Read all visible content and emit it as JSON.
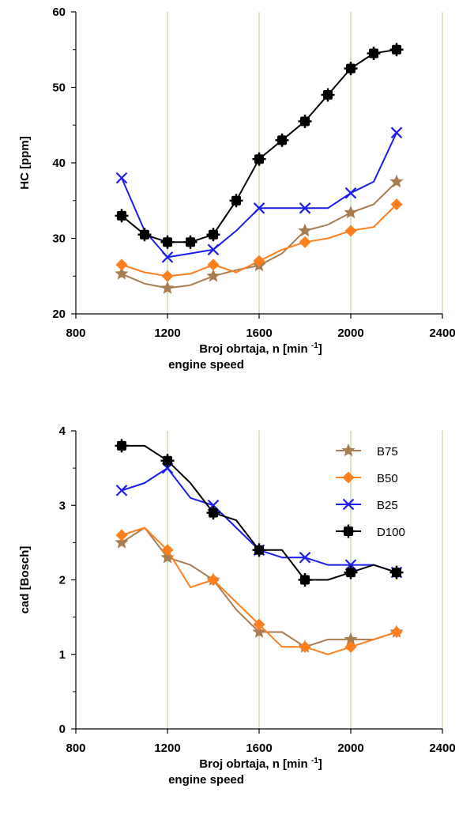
{
  "chart_data": [
    {
      "type": "line",
      "xlabel": "Broj obrtaja, n [min",
      "xlabel_sup": "-1",
      "xlabel_close": "]",
      "xlabel_line2": "engine speed",
      "ylabel": "HC [ppm]",
      "xlim": [
        800,
        2400
      ],
      "ylim": [
        20,
        60
      ],
      "xticks": [
        "800",
        "1200",
        "1600",
        "2000",
        "2400"
      ],
      "yticks": [
        "20",
        "30",
        "40",
        "50",
        "60"
      ],
      "grid": "vertical",
      "legend": false,
      "series": [
        {
          "name": "B75",
          "color": "#a97d4f",
          "marker": "star",
          "x": [
            1000,
            1100,
            1200,
            1300,
            1400,
            1500,
            1600,
            1700,
            1800,
            1900,
            2000,
            2100,
            2200
          ],
          "y": [
            25.3,
            24,
            23.4,
            23.8,
            25,
            25.8,
            26.4,
            28,
            31,
            31.8,
            33.4,
            34.5,
            37.5
          ],
          "marked": [
            1000,
            1200,
            1400,
            1600,
            1800,
            2000,
            2200
          ]
        },
        {
          "name": "B50",
          "color": "#ff7f1e",
          "marker": "diamond",
          "x": [
            1000,
            1100,
            1200,
            1300,
            1400,
            1500,
            1600,
            1700,
            1800,
            1900,
            2000,
            2100,
            2200
          ],
          "y": [
            26.5,
            25.5,
            25,
            25.3,
            26.5,
            25.5,
            27,
            28.5,
            29.5,
            30,
            31,
            31.5,
            34.5
          ],
          "marked": [
            1000,
            1200,
            1400,
            1600,
            1800,
            2000,
            2200
          ]
        },
        {
          "name": "B25",
          "color": "#1c1cf0",
          "marker": "x",
          "x": [
            1000,
            1100,
            1200,
            1300,
            1400,
            1500,
            1600,
            1700,
            1800,
            1900,
            2000,
            2100,
            2200
          ],
          "y": [
            38,
            31,
            27.5,
            28,
            28.5,
            31,
            34,
            34,
            34,
            34,
            36,
            37.5,
            44
          ],
          "marked": [
            1000,
            1200,
            1400,
            1600,
            1800,
            2000,
            2200
          ]
        },
        {
          "name": "D100",
          "color": "#000000",
          "marker": "square",
          "x": [
            1000,
            1100,
            1200,
            1300,
            1400,
            1500,
            1600,
            1700,
            1800,
            1900,
            2000,
            2100,
            2200
          ],
          "y": [
            33,
            30.5,
            29.5,
            29.5,
            30.5,
            35,
            40.5,
            43,
            45.5,
            49,
            52.5,
            54.5,
            55
          ],
          "marked": [
            1000,
            1100,
            1200,
            1300,
            1400,
            1500,
            1600,
            1700,
            1800,
            1900,
            2000,
            2100,
            2200
          ]
        }
      ]
    },
    {
      "type": "line",
      "xlabel": "Broj obrtaja, n [min",
      "xlabel_sup": "-1",
      "xlabel_close": "]",
      "xlabel_line2": "engine speed",
      "ylabel": "cad [Bosch]",
      "xlim": [
        800,
        2400
      ],
      "ylim": [
        0,
        4
      ],
      "xticks": [
        "800",
        "1200",
        "1600",
        "2000",
        "2400"
      ],
      "yticks": [
        "0",
        "1",
        "2",
        "3",
        "4"
      ],
      "grid": "vertical",
      "legend": true,
      "legend_position": "top-right",
      "series": [
        {
          "name": "B75",
          "color": "#a97d4f",
          "marker": "star",
          "x": [
            1000,
            1100,
            1200,
            1300,
            1400,
            1500,
            1600,
            1700,
            1800,
            1900,
            2000,
            2100,
            2200
          ],
          "y": [
            2.5,
            2.7,
            2.3,
            2.2,
            2.0,
            1.6,
            1.3,
            1.3,
            1.1,
            1.2,
            1.2,
            1.2,
            1.3
          ],
          "marked": [
            1000,
            1200,
            1400,
            1600,
            1800,
            2000,
            2200
          ]
        },
        {
          "name": "B50",
          "color": "#ff7f1e",
          "marker": "diamond",
          "x": [
            1000,
            1100,
            1200,
            1300,
            1400,
            1500,
            1600,
            1700,
            1800,
            1900,
            2000,
            2100,
            2200
          ],
          "y": [
            2.6,
            2.7,
            2.4,
            1.9,
            2.0,
            1.7,
            1.4,
            1.1,
            1.1,
            1.0,
            1.1,
            1.2,
            1.3
          ],
          "marked": [
            1000,
            1200,
            1400,
            1600,
            1800,
            2000,
            2200
          ]
        },
        {
          "name": "B25",
          "color": "#1c1cf0",
          "marker": "x",
          "x": [
            1000,
            1100,
            1200,
            1300,
            1400,
            1500,
            1600,
            1700,
            1800,
            1900,
            2000,
            2100,
            2200
          ],
          "y": [
            3.2,
            3.3,
            3.5,
            3.1,
            3.0,
            2.7,
            2.4,
            2.3,
            2.3,
            2.2,
            2.2,
            2.2,
            2.1
          ],
          "marked": [
            1000,
            1200,
            1400,
            1600,
            1800,
            2000,
            2200
          ]
        },
        {
          "name": "D100",
          "color": "#000000",
          "marker": "square",
          "x": [
            1000,
            1100,
            1200,
            1300,
            1400,
            1500,
            1600,
            1700,
            1800,
            1900,
            2000,
            2100,
            2200
          ],
          "y": [
            3.8,
            3.8,
            3.6,
            3.3,
            2.9,
            2.8,
            2.4,
            2.4,
            2.0,
            2.0,
            2.1,
            2.2,
            2.1
          ],
          "marked": [
            1000,
            1200,
            1400,
            1600,
            1800,
            2000,
            2200
          ]
        }
      ]
    }
  ]
}
